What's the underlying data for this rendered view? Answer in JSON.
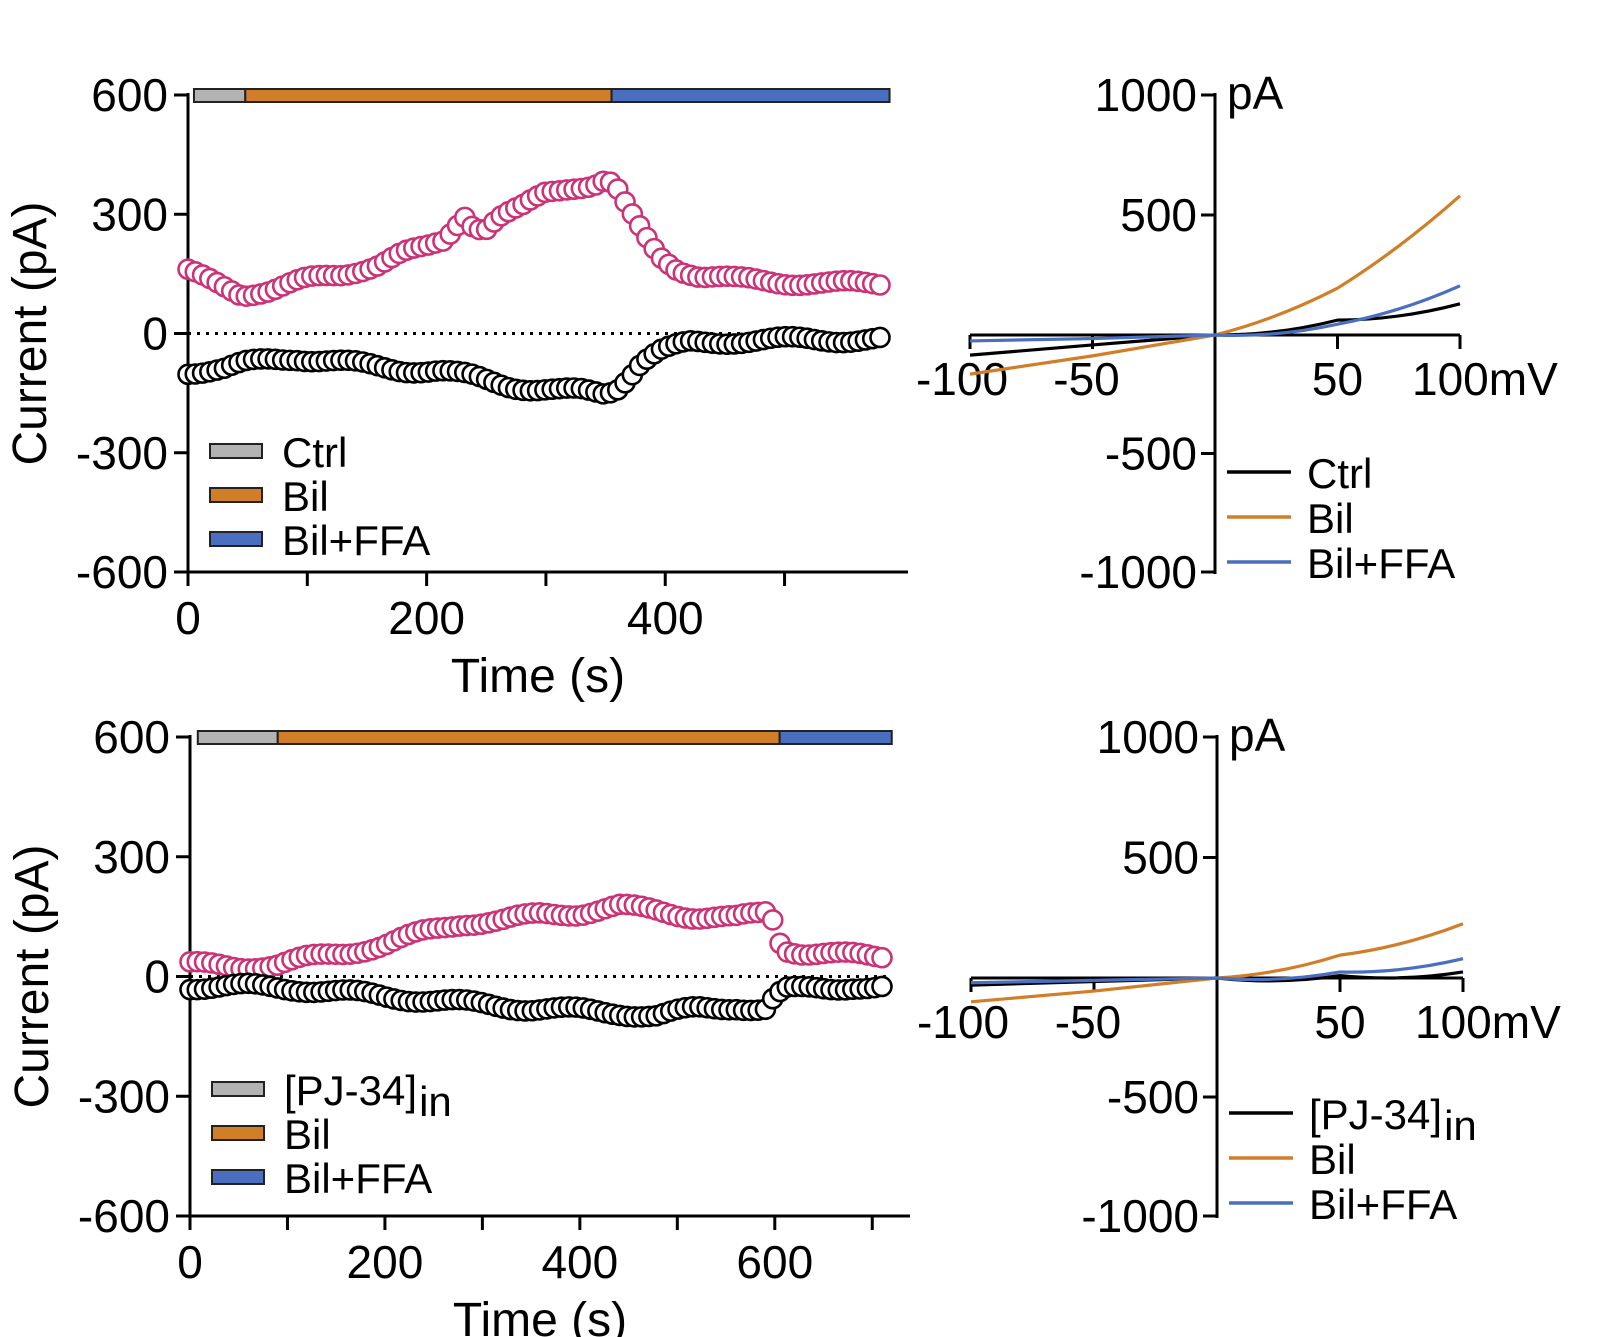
{
  "colors": {
    "ctrl": "#b3b3b3",
    "bil": "#d07f28",
    "ffa": "#4a6ec0",
    "pos_marker": "#cc3377",
    "neg_marker": "#000000",
    "iv_ctrl": "#000000"
  },
  "chart_data": [
    {
      "id": "time_top",
      "type": "scatter",
      "ylabel": "Current (pA)",
      "xlabel": "Time (s)",
      "xlim": [
        0,
        580
      ],
      "ylim": [
        -600,
        600
      ],
      "yticks": [
        600,
        300,
        0,
        -300,
        -600
      ],
      "xticks": [
        0,
        200,
        400
      ],
      "minor_xticks": [
        100,
        300,
        500
      ],
      "zero_line": true,
      "bars": [
        {
          "label": "Ctrl",
          "color_key": "ctrl",
          "start": 5,
          "end": 48
        },
        {
          "label": "Bil",
          "color_key": "bil",
          "start": 48,
          "end": 355
        },
        {
          "label": "Bil+FFA",
          "color_key": "ffa",
          "start": 355,
          "end": 588
        }
      ],
      "legend": [
        "Ctrl",
        "Bil",
        "Bil+FFA"
      ],
      "series": [
        {
          "name": "outward",
          "color_key": "pos_marker",
          "anchors": [
            [
              0,
              155
            ],
            [
              20,
              130
            ],
            [
              45,
              100
            ],
            [
              70,
              110
            ],
            [
              100,
              135
            ],
            [
              130,
              150
            ],
            [
              160,
              175
            ],
            [
              180,
              200
            ],
            [
              200,
              215
            ],
            [
              215,
              235
            ],
            [
              225,
              275
            ],
            [
              232,
              300
            ],
            [
              240,
              270
            ],
            [
              250,
              265
            ],
            [
              260,
              290
            ],
            [
              280,
              315
            ],
            [
              300,
              355
            ],
            [
              320,
              370
            ],
            [
              340,
              375
            ],
            [
              350,
              385
            ],
            [
              358,
              370
            ],
            [
              365,
              330
            ],
            [
              375,
              280
            ],
            [
              385,
              235
            ],
            [
              395,
              195
            ],
            [
              410,
              165
            ],
            [
              430,
              145
            ],
            [
              460,
              135
            ],
            [
              500,
              130
            ],
            [
              540,
              125
            ],
            [
              580,
              125
            ]
          ]
        },
        {
          "name": "inward",
          "color_key": "neg_marker",
          "anchors": [
            [
              0,
              -95
            ],
            [
              30,
              -90
            ],
            [
              50,
              -75
            ],
            [
              70,
              -65
            ],
            [
              90,
              -60
            ],
            [
              120,
              -70
            ],
            [
              150,
              -80
            ],
            [
              180,
              -90
            ],
            [
              210,
              -95
            ],
            [
              240,
              -110
            ],
            [
              270,
              -130
            ],
            [
              290,
              -140
            ],
            [
              310,
              -145
            ],
            [
              330,
              -145
            ],
            [
              350,
              -150
            ],
            [
              360,
              -135
            ],
            [
              370,
              -105
            ],
            [
              380,
              -70
            ],
            [
              395,
              -45
            ],
            [
              420,
              -25
            ],
            [
              460,
              -18
            ],
            [
              520,
              -15
            ],
            [
              580,
              -15
            ]
          ]
        }
      ]
    },
    {
      "id": "iv_top",
      "type": "line",
      "unit_y": "pA",
      "unit_x": "mV",
      "xlim": [
        -100,
        100
      ],
      "ylim": [
        -1000,
        1000
      ],
      "yticks": [
        1000,
        500,
        -500,
        -1000
      ],
      "xticks": [
        -100,
        -50,
        50,
        100
      ],
      "xtick_labels": [
        "-100",
        "-50",
        "50",
        "100mV"
      ],
      "series": [
        {
          "name": "Ctrl",
          "color_key": "iv_ctrl",
          "x": [
            -100,
            -50,
            0,
            50,
            100
          ],
          "y": [
            -85,
            -42,
            0,
            62,
            130
          ]
        },
        {
          "name": "Bil",
          "color_key": "bil",
          "x": [
            -100,
            -50,
            0,
            50,
            100
          ],
          "y": [
            -165,
            -88,
            0,
            195,
            580
          ]
        },
        {
          "name": "Bil+FFA",
          "color_key": "ffa",
          "x": [
            -100,
            -50,
            0,
            50,
            100
          ],
          "y": [
            -25,
            -15,
            0,
            45,
            205
          ]
        }
      ],
      "legend": [
        "Ctrl",
        "Bil",
        "Bil+FFA"
      ]
    },
    {
      "id": "time_bottom",
      "type": "scatter",
      "ylabel": "Current (pA)",
      "xlabel": "Time (s)",
      "xlim": [
        0,
        710
      ],
      "ylim": [
        -600,
        600
      ],
      "yticks": [
        600,
        300,
        0,
        -300,
        -600
      ],
      "xticks": [
        0,
        200,
        400,
        600
      ],
      "minor_xticks": [
        100,
        300,
        500,
        700
      ],
      "zero_line": true,
      "bars": [
        {
          "label": "[PJ-34]",
          "label_sub": "in",
          "color_key": "ctrl",
          "start": 8,
          "end": 90
        },
        {
          "label": "Bil",
          "color_key": "bil",
          "start": 90,
          "end": 605
        },
        {
          "label": "Bil+FFA",
          "color_key": "ffa",
          "start": 605,
          "end": 720
        }
      ],
      "legend": [
        "[PJ-34]",
        "Bil",
        "Bil+FFA"
      ],
      "series": [
        {
          "name": "outward",
          "color_key": "pos_marker",
          "anchors": [
            [
              0,
              30
            ],
            [
              50,
              25
            ],
            [
              90,
              30
            ],
            [
              120,
              45
            ],
            [
              160,
              60
            ],
            [
              200,
              80
            ],
            [
              240,
              110
            ],
            [
              280,
              135
            ],
            [
              320,
              140
            ],
            [
              360,
              155
            ],
            [
              400,
              160
            ],
            [
              440,
              175
            ],
            [
              480,
              165
            ],
            [
              520,
              150
            ],
            [
              560,
              145
            ],
            [
              590,
              160
            ],
            [
              596,
              175
            ],
            [
              600,
              110
            ],
            [
              610,
              70
            ],
            [
              630,
              60
            ],
            [
              660,
              55
            ],
            [
              700,
              50
            ]
          ]
        },
        {
          "name": "inward",
          "color_key": "neg_marker",
          "anchors": [
            [
              0,
              -25
            ],
            [
              60,
              -25
            ],
            [
              110,
              -30
            ],
            [
              160,
              -40
            ],
            [
              200,
              -50
            ],
            [
              250,
              -60
            ],
            [
              300,
              -70
            ],
            [
              350,
              -80
            ],
            [
              400,
              -85
            ],
            [
              440,
              -90
            ],
            [
              480,
              -100
            ],
            [
              520,
              -80
            ],
            [
              560,
              -75
            ],
            [
              590,
              -85
            ],
            [
              598,
              -60
            ],
            [
              610,
              -35
            ],
            [
              640,
              -28
            ],
            [
              680,
              -25
            ],
            [
              700,
              -30
            ]
          ]
        }
      ]
    },
    {
      "id": "iv_bottom",
      "type": "line",
      "unit_y": "pA",
      "unit_x": "mV",
      "xlim": [
        -100,
        100
      ],
      "ylim": [
        -1000,
        1000
      ],
      "yticks": [
        1000,
        500,
        -500,
        -1000
      ],
      "xticks": [
        -100,
        -50,
        50,
        100
      ],
      "xtick_labels": [
        "-100",
        "-50",
        "50",
        "100mV"
      ],
      "series": [
        {
          "name": "[PJ-34]in",
          "color_key": "iv_ctrl",
          "x": [
            -100,
            -50,
            0,
            50,
            100
          ],
          "y": [
            -30,
            -15,
            0,
            10,
            25
          ]
        },
        {
          "name": "Bil",
          "color_key": "bil",
          "x": [
            -100,
            -50,
            0,
            50,
            100
          ],
          "y": [
            -100,
            -55,
            0,
            95,
            225
          ]
        },
        {
          "name": "Bil+FFA",
          "color_key": "ffa",
          "x": [
            -100,
            -50,
            0,
            50,
            100
          ],
          "y": [
            -20,
            -10,
            0,
            25,
            80
          ]
        }
      ],
      "legend": [
        "[PJ-34]",
        "Bil",
        "Bil+FFA"
      ]
    }
  ]
}
